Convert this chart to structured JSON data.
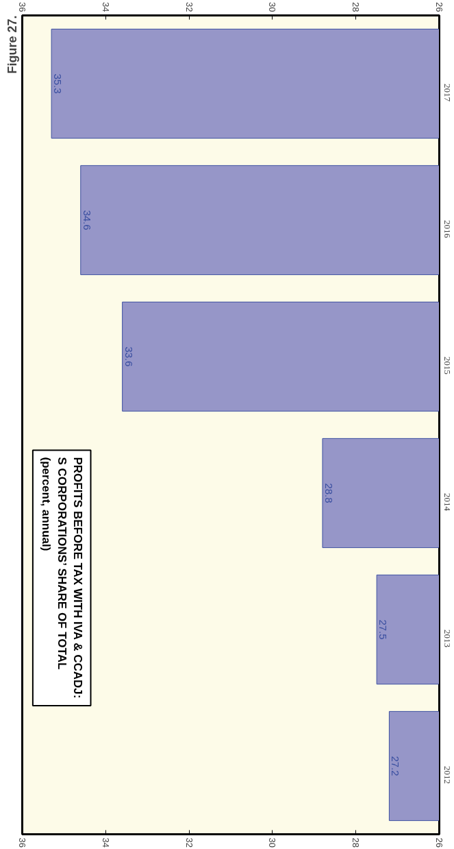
{
  "chart_data": {
    "type": "bar",
    "orientation": "horizontal",
    "annotations": [
      "Figure 27."
    ],
    "title": "PROFITS BEFORE TAX WITH IVA & CCADJ:\nS CORPORATIONS’ SHARE OF TOTAL",
    "subtitle": "(percent, annual)",
    "categories": [
      "2017",
      "2016",
      "2015",
      "2014",
      "2013",
      "2012"
    ],
    "values": [
      35.3,
      34.6,
      33.6,
      28.8,
      27.5,
      27.2
    ],
    "color": "#9696c8",
    "data_labels": true,
    "xlim": [
      36,
      26
    ],
    "xticks": [
      26,
      28,
      30,
      32,
      34,
      36
    ],
    "x2lim": [
      36,
      26
    ],
    "x2ticks": [
      26,
      28,
      30,
      32,
      34,
      36
    ],
    "grid": false
  }
}
